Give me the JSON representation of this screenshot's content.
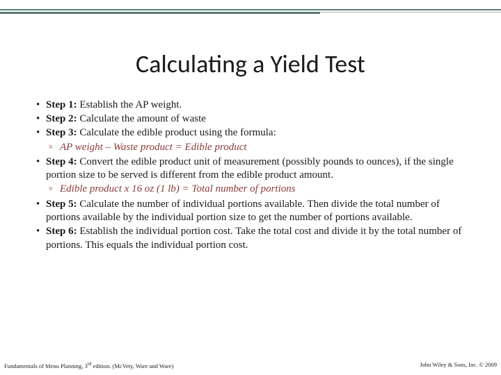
{
  "accent_color": "#5a7a7a",
  "sub_color": "#8b3a3a",
  "title": "Calculating a Yield Test",
  "steps": [
    {
      "label": "Step 1:",
      "text": " Establish the AP weight."
    },
    {
      "label": "Step 2:",
      "text": " Calculate the amount of waste"
    },
    {
      "label": "Step 3:",
      "text": " Calculate the edible product using the formula:"
    }
  ],
  "sub1": "AP weight – Waste product = Edible product",
  "step4": {
    "label": "Step 4:",
    "text": " Convert the edible product unit of measurement (possibly pounds to ounces), if the single portion size to be served is different from the edible product amount."
  },
  "sub2": "Edible product x 16 oz (1 lb) = Total number of portions",
  "step5": {
    "label": "Step 5:",
    "text": " Calculate the number of individual portions available. Then divide the total number of portions available by the individual portion size to get the number of portions available."
  },
  "step6": {
    "label": "Step 6:",
    "text": " Establish the individual portion cost. Take the total cost and divide it by the total number of portions. This equals the individual portion cost."
  },
  "footer_left_a": "Fundamentals of Menu Planning, 3",
  "footer_left_sup": "rd",
  "footer_left_b": " edition. (McVety, Ware and Ware)",
  "footer_right": "John Wiley & Sons, Inc. © 2009"
}
